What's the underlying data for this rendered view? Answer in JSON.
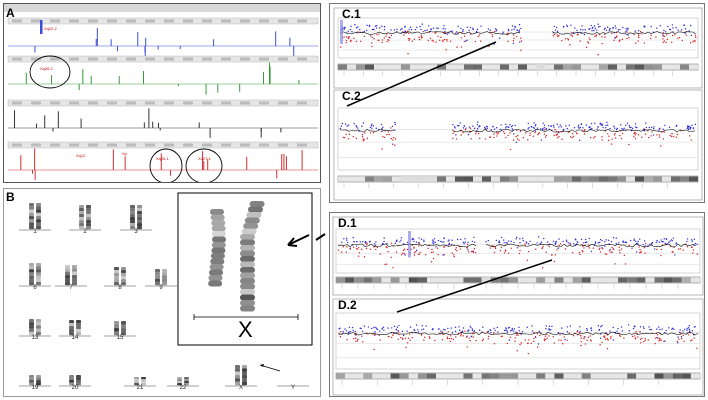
{
  "panels": {
    "A": {
      "label": "A",
      "tracks": [
        {
          "color": "#3a4fd6",
          "label": "Xq22.2"
        },
        {
          "color": "#3a9a3a",
          "label": "Xq26.2"
        },
        {
          "color": "#333333",
          "label": ""
        },
        {
          "color": "#d03030",
          "labels": [
            "Xq12",
            "Xp",
            "Xq26.1",
            "Xq27.1"
          ]
        }
      ]
    },
    "B": {
      "label": "B",
      "karyotype_labels": [
        "1",
        "2",
        "3",
        "6",
        "7",
        "8",
        "9",
        "13",
        "14",
        "15",
        "19",
        "20",
        "21",
        "22",
        "X",
        "Y"
      ],
      "zoom_label": "X"
    },
    "C1": {
      "label": "C.1"
    },
    "C2": {
      "label": "C.2"
    },
    "D1": {
      "label": "D.1"
    },
    "D2": {
      "label": "D.2"
    },
    "colors": {
      "probe_blue": "#2a2ad8",
      "probe_red": "#d62020",
      "trend": "#111111",
      "highlight": "#8a8ae8"
    }
  }
}
